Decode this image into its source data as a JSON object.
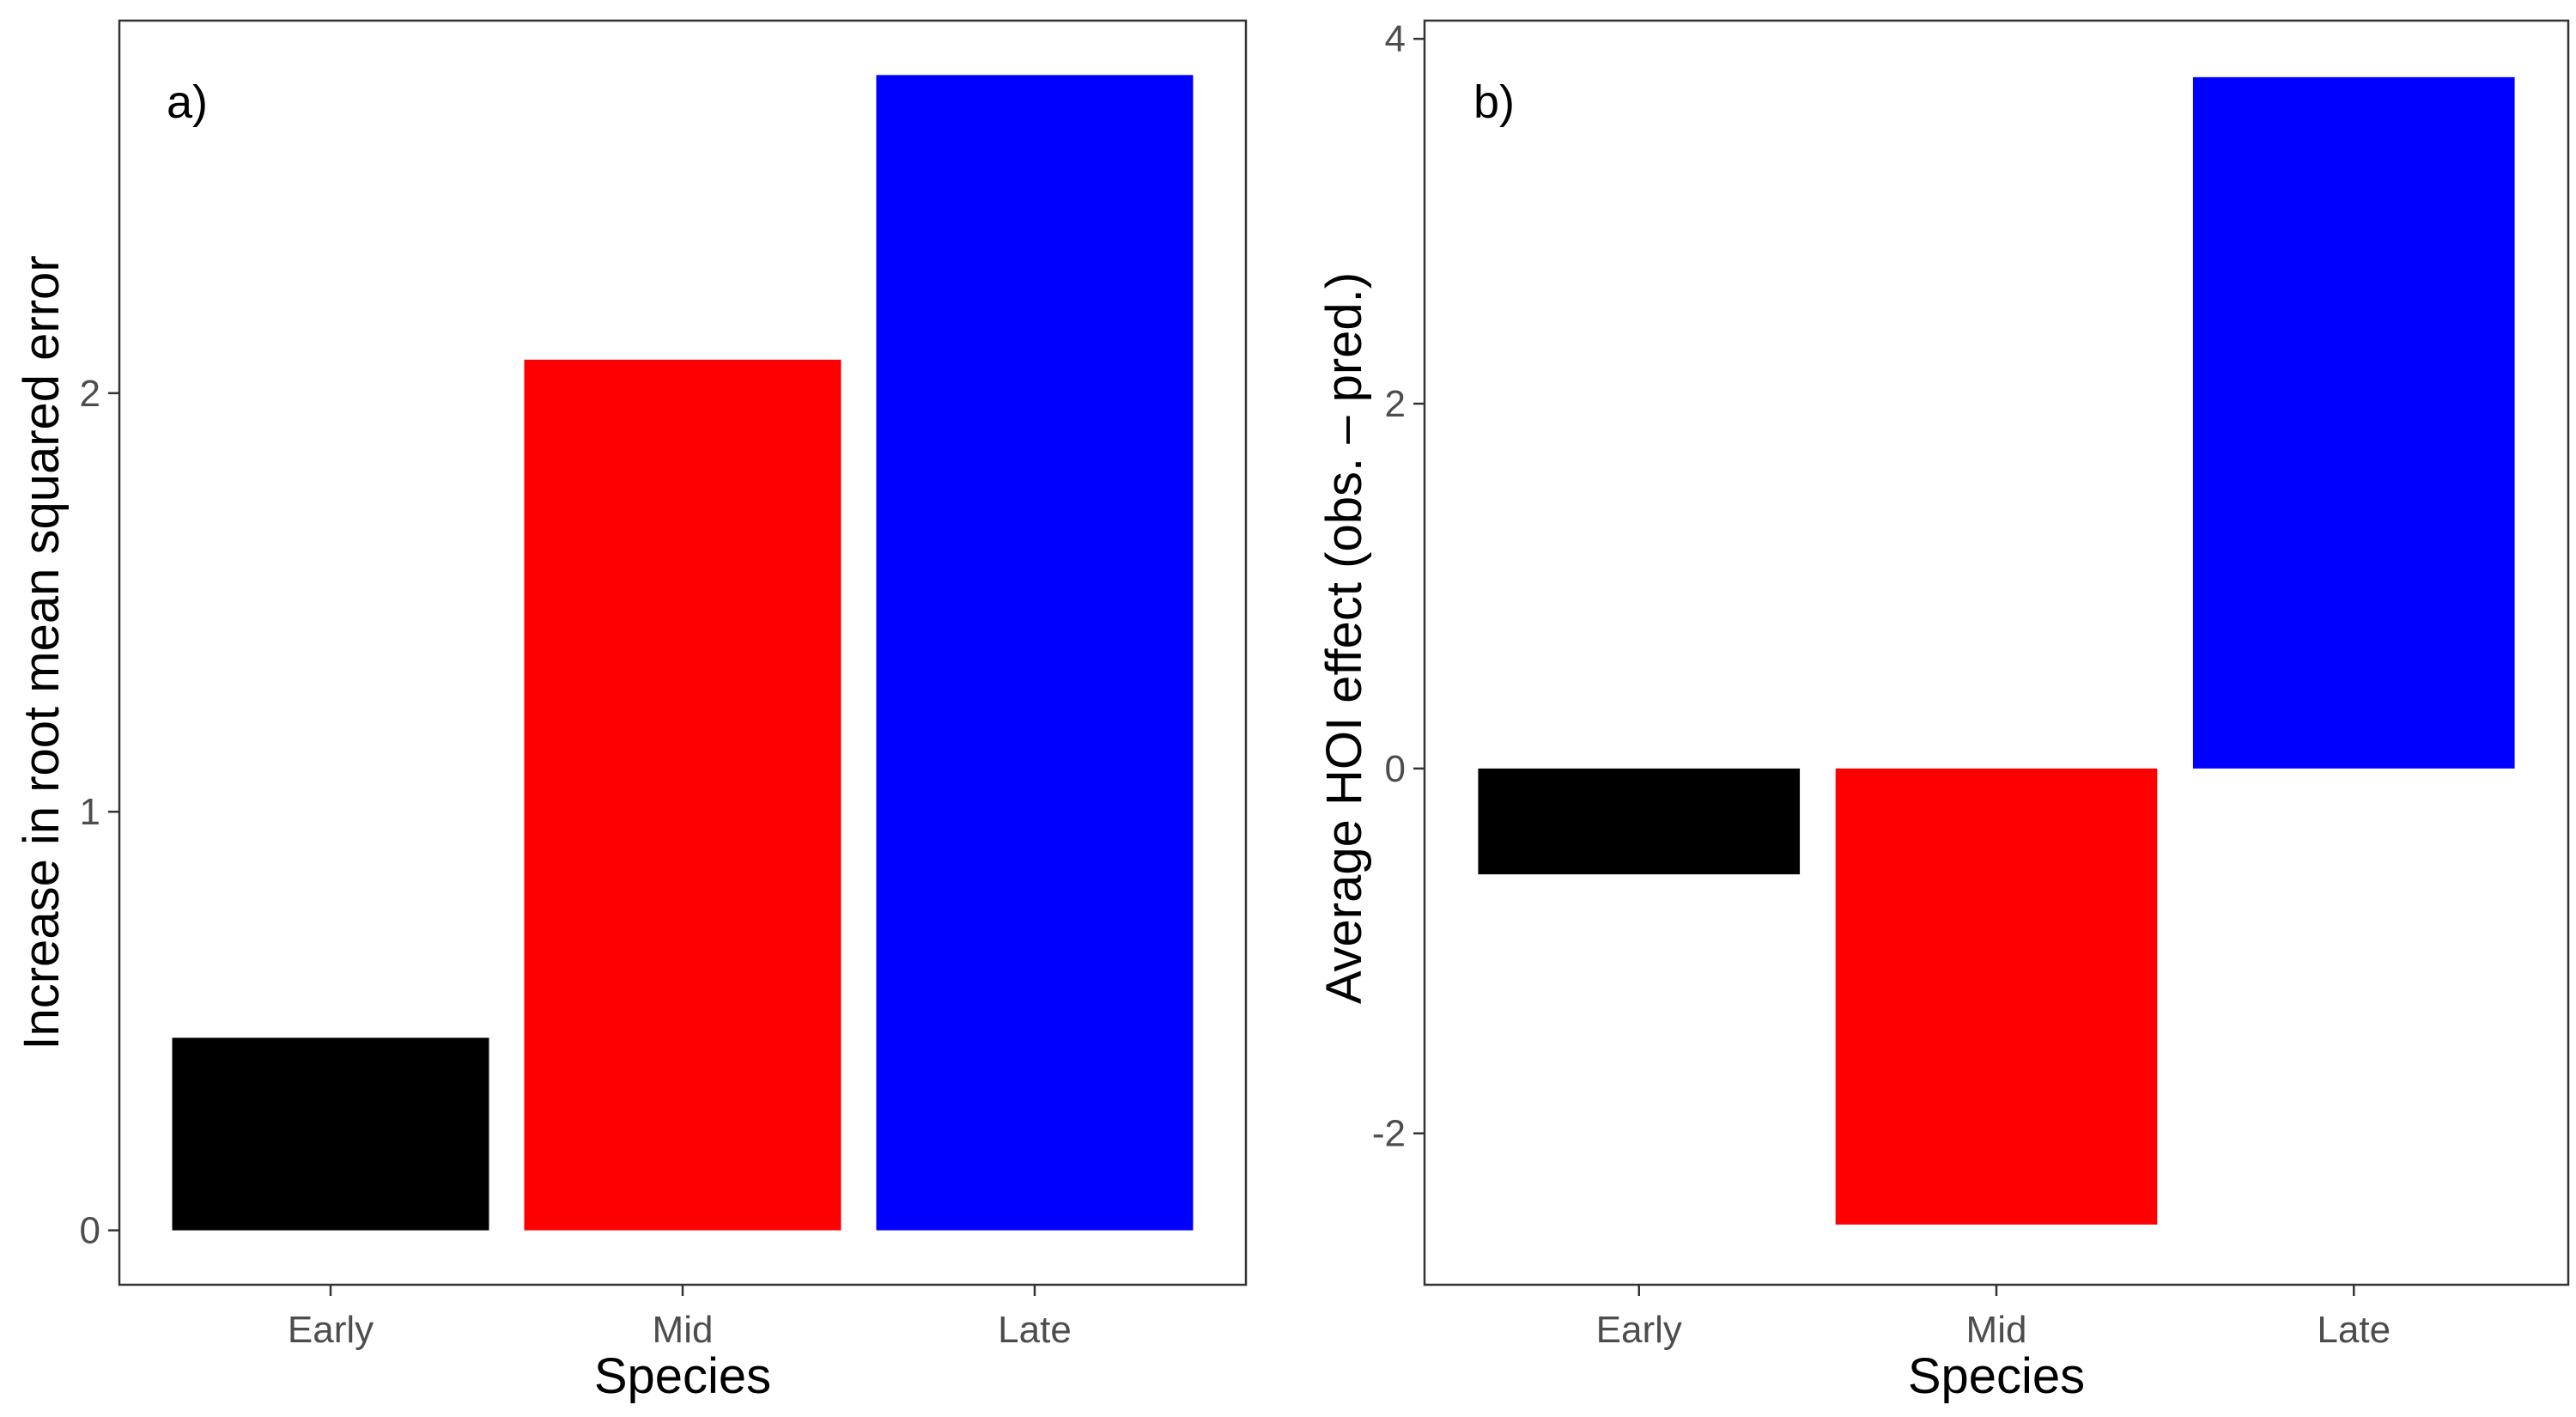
{
  "chart_data": [
    {
      "type": "bar",
      "panel_label": "a)",
      "categories": [
        "Early",
        "Mid",
        "Late"
      ],
      "values": [
        0.46,
        2.08,
        2.76
      ],
      "colors": [
        "#000000",
        "#ff0000",
        "#0000ff"
      ],
      "xlabel": "Species",
      "ylabel": "Increase in root mean squared error",
      "ylim": [
        -0.13,
        2.89
      ],
      "yticks": [
        0,
        1,
        2
      ],
      "ytick_labels": [
        "0",
        "1",
        "2"
      ],
      "grid": false
    },
    {
      "type": "bar",
      "panel_label": "b)",
      "categories": [
        "Early",
        "Mid",
        "Late"
      ],
      "values": [
        -0.58,
        -2.5,
        3.79
      ],
      "colors": [
        "#000000",
        "#ff0000",
        "#0000ff"
      ],
      "xlabel": "Species",
      "ylabel": "Average HOI effect (obs. – pred.)",
      "ylim": [
        -2.83,
        4.1
      ],
      "yticks": [
        -2,
        0,
        2,
        4
      ],
      "ytick_labels": [
        "-2",
        "0",
        "2",
        "4"
      ],
      "grid": false
    }
  ]
}
